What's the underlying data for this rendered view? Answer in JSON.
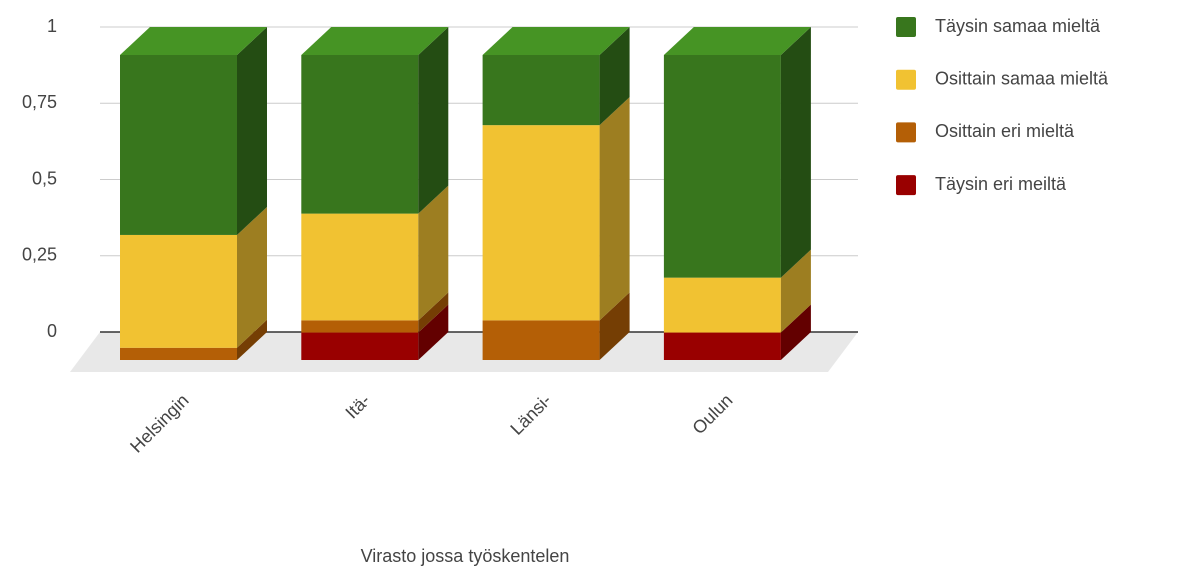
{
  "chart_data": {
    "type": "bar3d_stacked",
    "x_label": "Virasto jossa työskentelen",
    "categories": [
      "Helsingin",
      "Itä-",
      "Länsi-",
      "Oulun"
    ],
    "series": [
      {
        "name": "Täysin samaa mieltä",
        "color": "#38761d",
        "values": [
          0.59,
          0.52,
          0.23,
          0.73
        ]
      },
      {
        "name": "Osittain samaa mieltä",
        "color": "#f1c232",
        "values": [
          0.37,
          0.35,
          0.64,
          0.18
        ]
      },
      {
        "name": "Osittain eri mieltä",
        "color": "#b45f06",
        "values": [
          0.04,
          0.04,
          0.13,
          0
        ]
      },
      {
        "name": "Täysin eri meiltä",
        "color": "#990000",
        "values": [
          0,
          0.09,
          0,
          0.09
        ]
      }
    ],
    "ylim": [
      0,
      1
    ],
    "yticks": [
      0,
      {
        "value": 0.25,
        "label": "0,25"
      },
      {
        "value": 0.5,
        "label": "0,5"
      },
      {
        "value": 0.75,
        "label": "0,75"
      },
      1
    ],
    "grid": true,
    "legend": "right"
  }
}
